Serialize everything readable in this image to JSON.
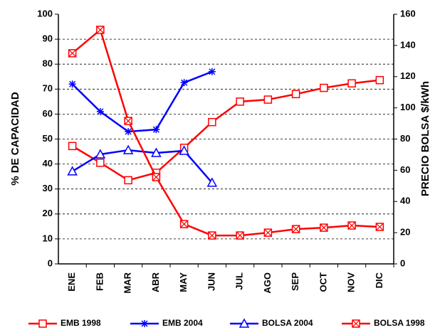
{
  "chart_data": {
    "type": "line",
    "y_label": "% DE CAPACIDAD",
    "y2_label": "PRECIO BOLSA $/kWh",
    "categories": [
      "ENE",
      "FEB",
      "MAR",
      "ABR",
      "MAY",
      "JUN",
      "JUL",
      "AGO",
      "SEP",
      "OCT",
      "NOV",
      "DIC"
    ],
    "ylim": [
      0,
      100
    ],
    "yticks": [
      0,
      10,
      20,
      30,
      40,
      50,
      60,
      70,
      80,
      90,
      100
    ],
    "y2lim": [
      0,
      160
    ],
    "y2ticks": [
      0,
      20,
      40,
      60,
      80,
      100,
      120,
      140,
      160
    ],
    "grid": true,
    "legend": "bottom",
    "series": [
      {
        "name": "EMB 1998",
        "color": "#ff0000",
        "marker": "square",
        "values": [
          47.2,
          40.5,
          33.5,
          36.5,
          46.5,
          56.8,
          65,
          65.8,
          68,
          70.5,
          72.3,
          73.6
        ]
      },
      {
        "name": "EMB 2004",
        "color": "#0000ff",
        "marker": "star",
        "values": [
          72,
          61,
          53,
          53.8,
          72.6,
          77,
          null,
          null,
          null,
          null,
          null,
          null
        ]
      },
      {
        "name": "BOLSA 2004",
        "color": "#0000ff",
        "marker": "triangle",
        "axis": "y2",
        "values": [
          59.3,
          70.2,
          72.9,
          71.1,
          72.5,
          52,
          null,
          null,
          null,
          null,
          null,
          null
        ]
      },
      {
        "name": "BOLSA 1998",
        "color": "#ff0000",
        "marker": "xbox",
        "axis": "y2",
        "values": [
          135,
          150,
          91.6,
          55.6,
          25.5,
          18.2,
          18.2,
          20,
          22.3,
          23.2,
          24.6,
          23.7
        ]
      }
    ]
  }
}
